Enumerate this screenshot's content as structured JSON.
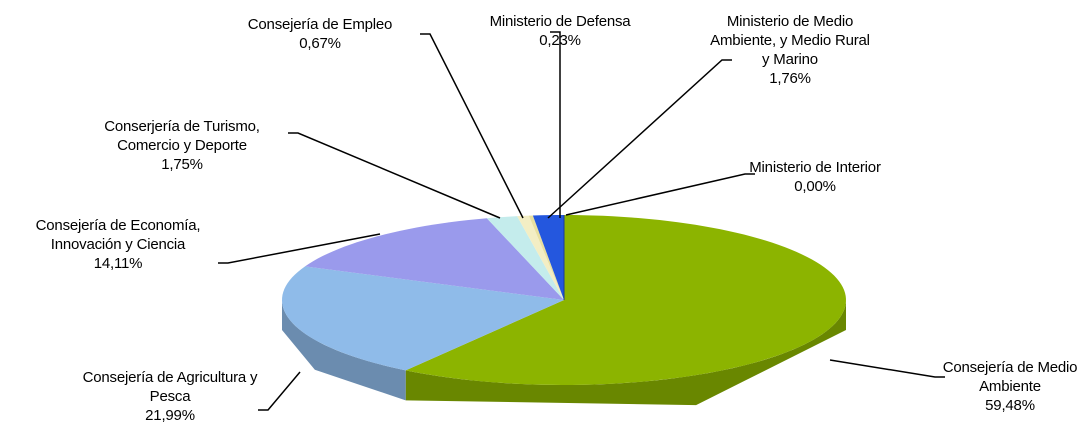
{
  "chart_data": {
    "type": "pie",
    "categories": [
      "Consejería de Medio Ambiente",
      "Consejería de Agricultura y Pesca",
      "Consejería de Economía, Innovación y Ciencia",
      "Conserjería de Turismo, Comercio y Deporte",
      "Consejería de Empleo",
      "Ministerio de Defensa",
      "Ministerio de Medio Ambiente, y Medio Rural y Marino",
      "Ministerio de Interior"
    ],
    "values": [
      59.48,
      21.99,
      14.11,
      1.75,
      0.67,
      0.23,
      1.76,
      0.0
    ],
    "value_labels": [
      "59,48%",
      "21,99%",
      "14,11%",
      "1,75%",
      "0,67%",
      "0,23%",
      "1,76%",
      "0,00%"
    ],
    "colors": [
      "#8cb400",
      "#8fbbe9",
      "#9a9aec",
      "#c4ecec",
      "#f3eec4",
      "#e8e0a0",
      "#2457de",
      "#1a3a9a"
    ]
  }
}
